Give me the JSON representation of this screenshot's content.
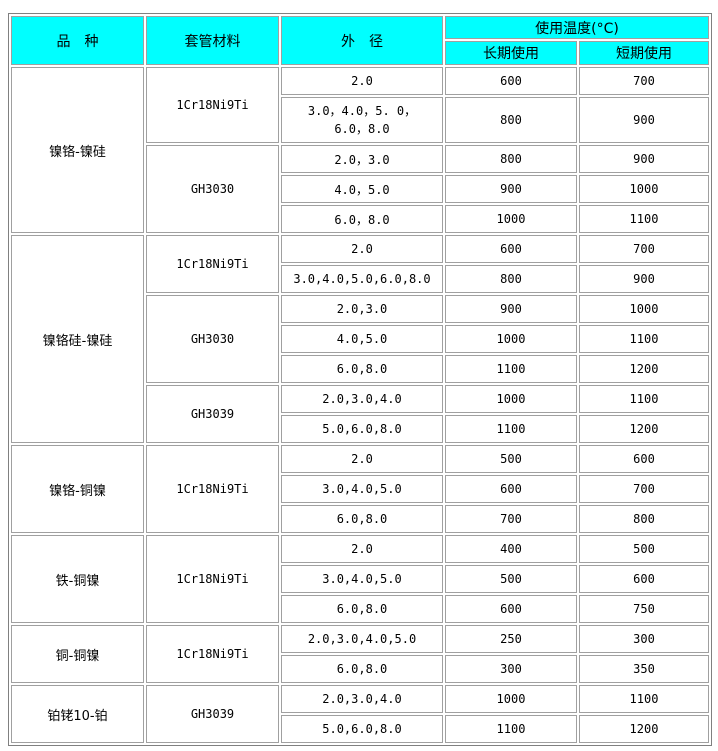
{
  "header": {
    "type": "品　种",
    "sheath": "套管材料",
    "diameter": "外　径",
    "temp": "使用温度(°C)",
    "long_term": "长期使用",
    "short_term": "短期使用"
  },
  "header_color": "#00ffff",
  "groups": [
    {
      "name": "镍铬-镍硅",
      "sheaths": [
        {
          "material": "1Cr18Ni9Ti",
          "rows": [
            {
              "od": "2.0",
              "long": "600",
              "short": "700"
            },
            {
              "od": "3.0，4.0，5. 0，\n6.0，8.0",
              "long": "800",
              "short": "900"
            }
          ]
        },
        {
          "material": "GH3030",
          "rows": [
            {
              "od": "2.0，3.0",
              "long": "800",
              "short": "900"
            },
            {
              "od": "4.0，5.0",
              "long": "900",
              "short": "1000"
            },
            {
              "od": "6.0，8.0",
              "long": "1000",
              "short": "1100"
            }
          ]
        }
      ]
    },
    {
      "name": "镍铬硅-镍硅",
      "sheaths": [
        {
          "material": "1Cr18Ni9Ti",
          "rows": [
            {
              "od": "2.0",
              "long": "600",
              "short": "700"
            },
            {
              "od": "3.0,4.0,5.0,6.0,8.0",
              "long": "800",
              "short": "900"
            }
          ]
        },
        {
          "material": "GH3030",
          "rows": [
            {
              "od": "2.0,3.0",
              "long": "900",
              "short": "1000"
            },
            {
              "od": "4.0,5.0",
              "long": "1000",
              "short": "1100"
            },
            {
              "od": "6.0,8.0",
              "long": "1100",
              "short": "1200"
            }
          ]
        },
        {
          "material": "GH3039",
          "rows": [
            {
              "od": "2.0,3.0,4.0",
              "long": "1000",
              "short": "1100"
            },
            {
              "od": "5.0,6.0,8.0",
              "long": "1100",
              "short": "1200"
            }
          ]
        }
      ]
    },
    {
      "name": "镍铬-铜镍",
      "sheaths": [
        {
          "material": "1Cr18Ni9Ti",
          "rows": [
            {
              "od": "2.0",
              "long": "500",
              "short": "600"
            },
            {
              "od": "3.0,4.0,5.0",
              "long": "600",
              "short": "700"
            },
            {
              "od": "6.0,8.0",
              "long": "700",
              "short": "800"
            }
          ]
        }
      ]
    },
    {
      "name": "铁-铜镍",
      "sheaths": [
        {
          "material": "1Cr18Ni9Ti",
          "rows": [
            {
              "od": "2.0",
              "long": "400",
              "short": "500"
            },
            {
              "od": "3.0,4.0,5.0",
              "long": "500",
              "short": "600"
            },
            {
              "od": "6.0,8.0",
              "long": "600",
              "short": "750"
            }
          ]
        }
      ]
    },
    {
      "name": "铜-铜镍",
      "sheaths": [
        {
          "material": "1Cr18Ni9Ti",
          "rows": [
            {
              "od": "2.0,3.0,4.0,5.0",
              "long": "250",
              "short": "300"
            },
            {
              "od": "6.0,8.0",
              "long": "300",
              "short": "350"
            }
          ]
        }
      ]
    },
    {
      "name": "铂铑10-铂",
      "sheaths": [
        {
          "material": "GH3039",
          "rows": [
            {
              "od": "2.0,3.0,4.0",
              "long": "1000",
              "short": "1100"
            },
            {
              "od": "5.0,6.0,8.0",
              "long": "1100",
              "short": "1200"
            }
          ]
        }
      ]
    }
  ]
}
